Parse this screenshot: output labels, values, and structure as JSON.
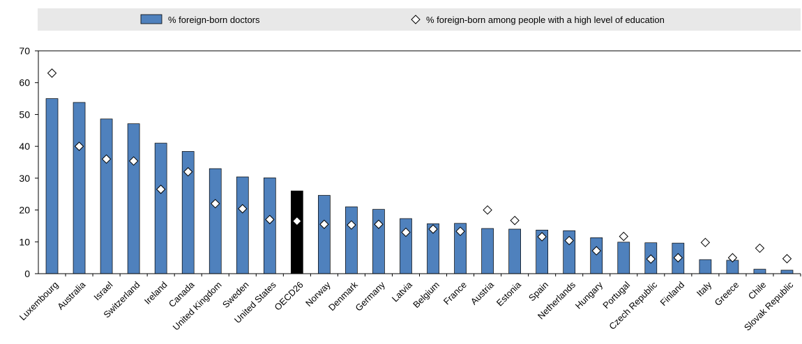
{
  "chart_data": {
    "type": "bar",
    "title": "",
    "xlabel": "",
    "ylabel": "",
    "ylim": [
      0,
      70
    ],
    "yticks": [
      0,
      10,
      20,
      30,
      40,
      50,
      60,
      70
    ],
    "grid": false,
    "legend_position": "top",
    "categories": [
      "Luxembourg",
      "Australia",
      "Israel",
      "Switzerland",
      "Ireland",
      "Canada",
      "United Kingdom",
      "Sweden",
      "United States",
      "OECD26",
      "Norway",
      "Denmark",
      "Germany",
      "Latvia",
      "Belgium",
      "France",
      "Austria",
      "Estonia",
      "Spain",
      "Netherlands",
      "Hungary",
      "Portugal",
      "Czech Republic",
      "Finland",
      "Italy",
      "Greece",
      "Chile",
      "Slovak Republic"
    ],
    "highlight_category": "OECD26",
    "series": [
      {
        "name": "% foreign-born doctors",
        "kind": "bar",
        "color": "#4F81BD",
        "highlight_color": "#000000",
        "values": [
          55.0,
          53.8,
          48.6,
          47.1,
          41.0,
          38.4,
          33.0,
          30.4,
          30.1,
          26.0,
          24.6,
          21.0,
          20.2,
          17.3,
          15.7,
          15.8,
          14.2,
          14.0,
          13.7,
          13.5,
          11.3,
          9.9,
          9.7,
          9.6,
          4.4,
          4.2,
          1.4,
          1.1
        ]
      },
      {
        "name": "% foreign-born among people with a high level of education",
        "kind": "marker",
        "marker": "diamond",
        "color": "#ffffff",
        "values": [
          63.0,
          40.0,
          36.0,
          35.4,
          26.5,
          32.0,
          22.0,
          20.4,
          17.0,
          16.5,
          15.5,
          15.3,
          15.5,
          13.0,
          14.0,
          13.3,
          20.0,
          16.7,
          11.6,
          10.4,
          7.2,
          11.7,
          4.6,
          5.0,
          9.8,
          5.0,
          8.0,
          4.7
        ]
      }
    ]
  }
}
